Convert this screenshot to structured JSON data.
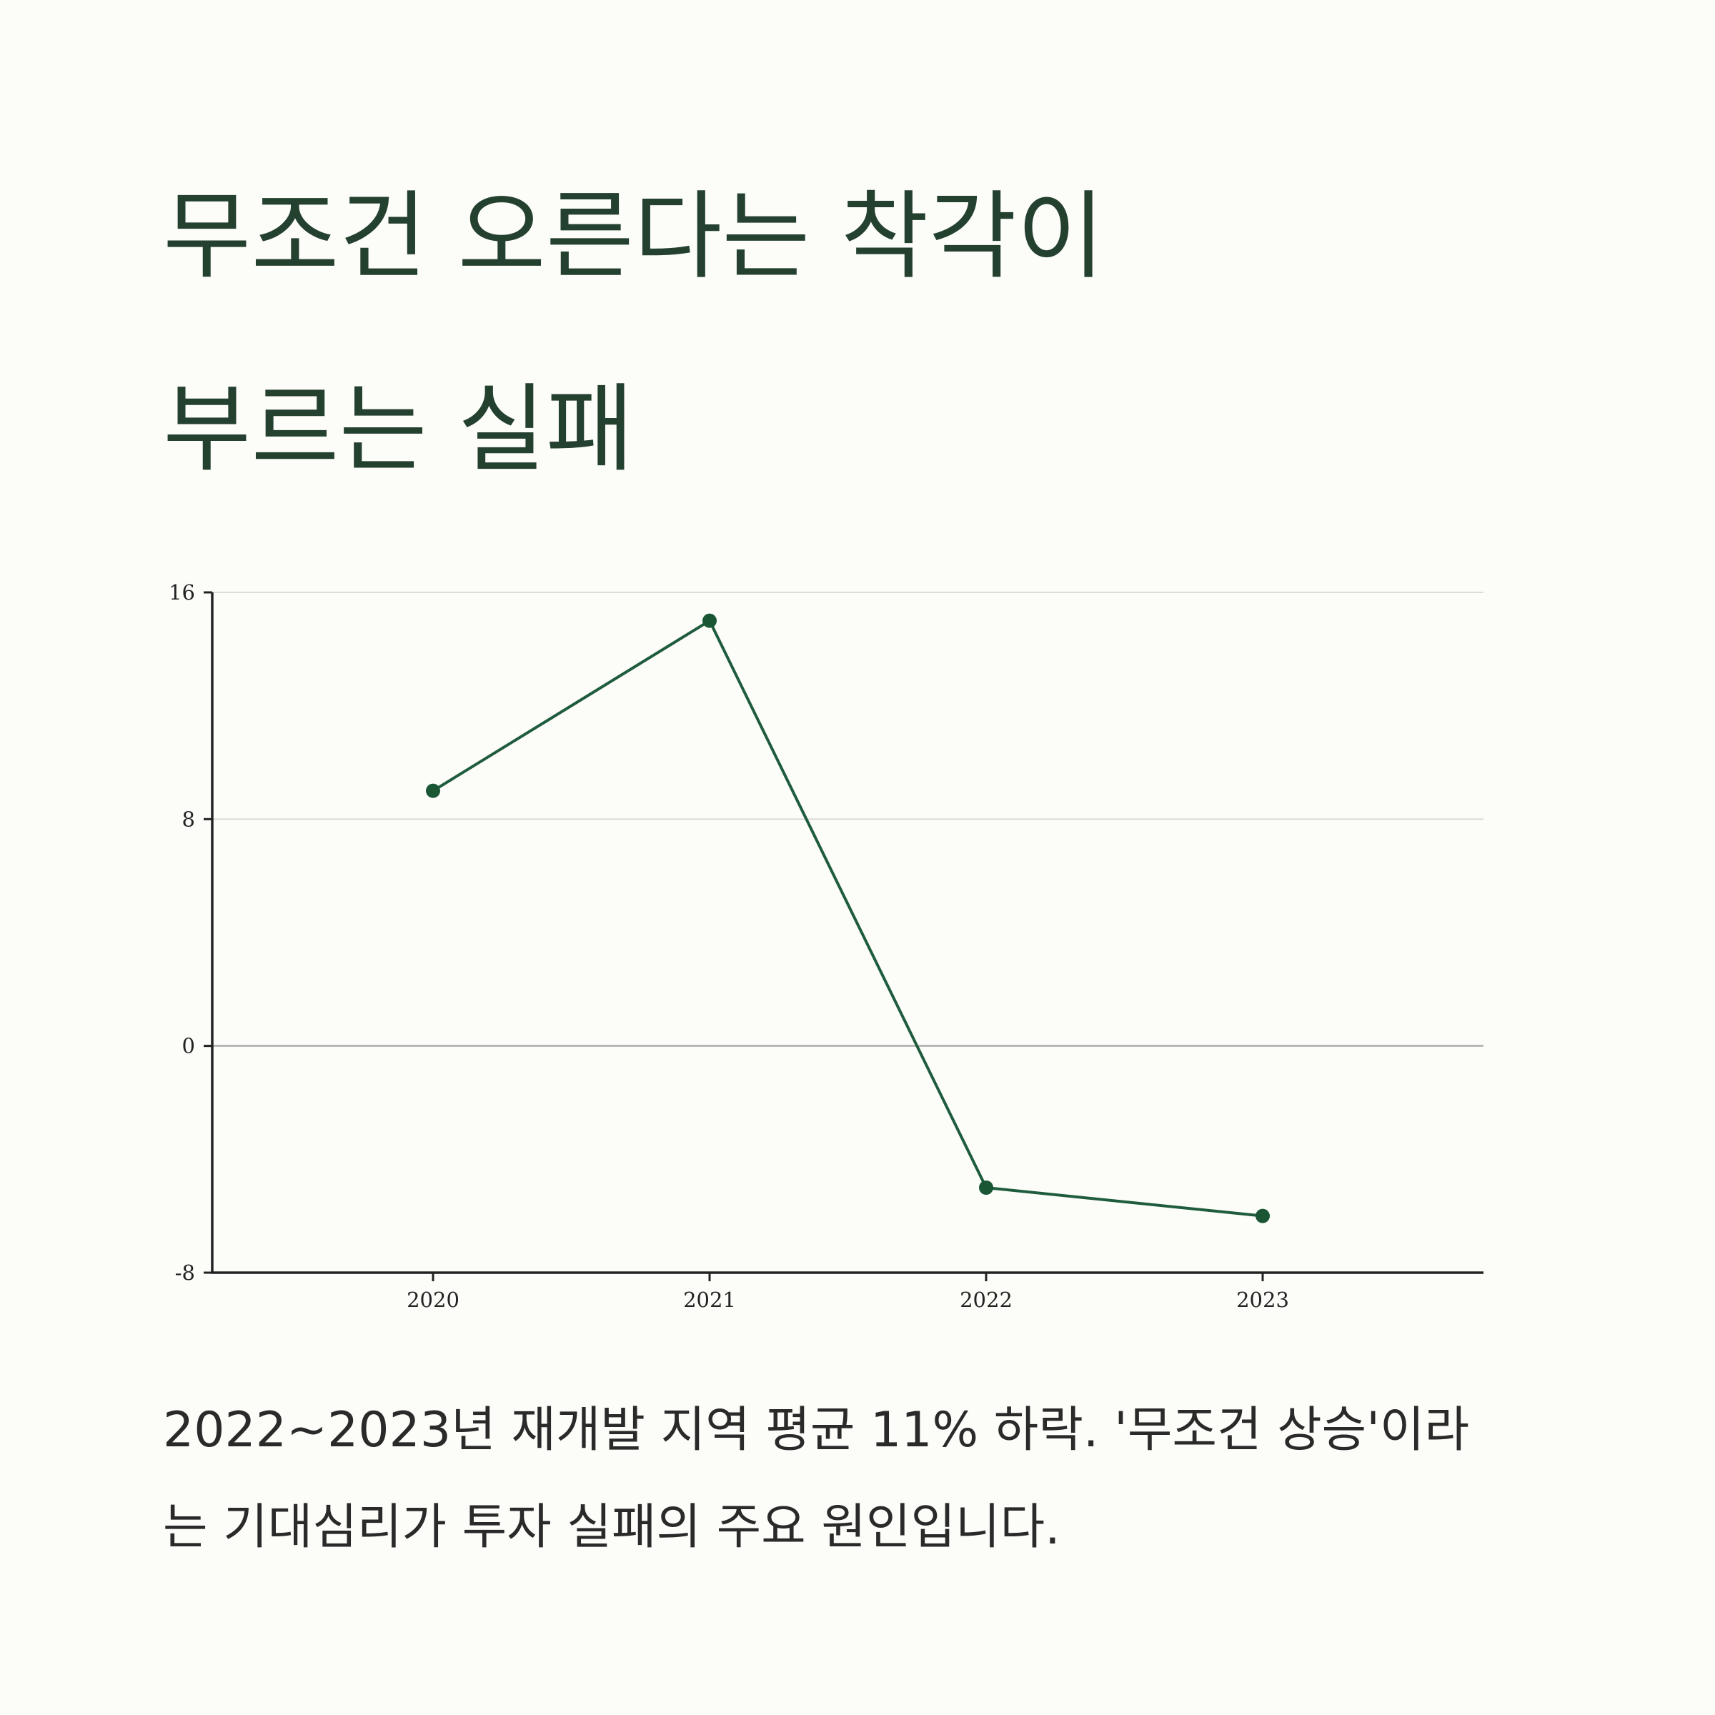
{
  "title": {
    "line1": "무조건 오른다는 착각이",
    "line2": "부르는 실패"
  },
  "chart_data": {
    "type": "line",
    "title": "",
    "xlabel": "",
    "ylabel": "",
    "categories": [
      "2020",
      "2021",
      "2022",
      "2023"
    ],
    "series": [
      {
        "values": [
          9.0,
          15.0,
          -5.0,
          -6.0
        ]
      }
    ],
    "ylim": [
      -8,
      16
    ],
    "yticks": [
      -8,
      0,
      8,
      16
    ],
    "grid": true,
    "legend": "none",
    "colors": {
      "line": "#1f5c3e",
      "marker": "#1a5634",
      "axis": "#222222",
      "grid": "#d2d2d2",
      "zero_line": "#9a9a9a"
    }
  },
  "caption": {
    "line1": "2022~2023년 재개발 지역 평균 11% 하락. '무조건 상승'이라",
    "line2": "는 기대심리가 투자 실패의 주요 원인입니다."
  }
}
